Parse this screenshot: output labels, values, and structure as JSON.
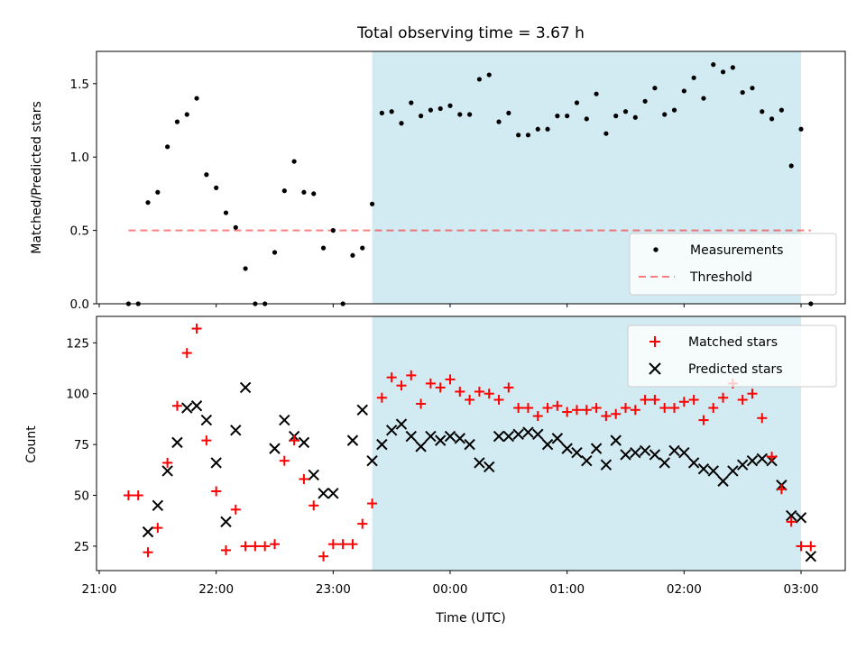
{
  "chart_data": [
    {
      "type": "scatter",
      "title": "Total observing time = 3.67 h",
      "xlabel": "",
      "ylabel": "Matched/Predicted stars",
      "ylim": [
        0,
        1.72
      ],
      "yticks": [
        "0.0",
        "0.5",
        "1.0",
        "1.5"
      ],
      "shaded_span": {
        "start": "23:20",
        "end": "03:00",
        "color": "#add8e6"
      },
      "legend": {
        "placement": "lower-right",
        "entries": [
          "Measurements",
          "Threshold"
        ]
      },
      "threshold": {
        "name": "Threshold",
        "value": 0.5,
        "x_start": "21:15",
        "x_end": "03:05",
        "color": "#ff0000"
      },
      "series": [
        {
          "name": "Measurements",
          "color": "#000000",
          "points": [
            [
              "21:15",
              0.0
            ],
            [
              "21:20",
              0.0
            ],
            [
              "21:25",
              0.69
            ],
            [
              "21:30",
              0.76
            ],
            [
              "21:35",
              1.07
            ],
            [
              "21:40",
              1.24
            ],
            [
              "21:45",
              1.29
            ],
            [
              "21:50",
              1.4
            ],
            [
              "21:55",
              0.88
            ],
            [
              "22:00",
              0.79
            ],
            [
              "22:05",
              0.62
            ],
            [
              "22:10",
              0.52
            ],
            [
              "22:15",
              0.24
            ],
            [
              "22:20",
              0.0
            ],
            [
              "22:25",
              0.0
            ],
            [
              "22:30",
              0.35
            ],
            [
              "22:35",
              0.77
            ],
            [
              "22:40",
              0.97
            ],
            [
              "22:45",
              0.76
            ],
            [
              "22:50",
              0.75
            ],
            [
              "22:55",
              0.38
            ],
            [
              "23:00",
              0.5
            ],
            [
              "23:05",
              0.0
            ],
            [
              "23:10",
              0.33
            ],
            [
              "23:15",
              0.38
            ],
            [
              "23:20",
              0.68
            ],
            [
              "23:25",
              1.3
            ],
            [
              "23:30",
              1.31
            ],
            [
              "23:35",
              1.23
            ],
            [
              "23:40",
              1.37
            ],
            [
              "23:45",
              1.28
            ],
            [
              "23:50",
              1.32
            ],
            [
              "23:55",
              1.33
            ],
            [
              "00:00",
              1.35
            ],
            [
              "00:05",
              1.29
            ],
            [
              "00:10",
              1.29
            ],
            [
              "00:15",
              1.53
            ],
            [
              "00:20",
              1.56
            ],
            [
              "00:25",
              1.24
            ],
            [
              "00:30",
              1.3
            ],
            [
              "00:35",
              1.15
            ],
            [
              "00:40",
              1.15
            ],
            [
              "00:45",
              1.19
            ],
            [
              "00:50",
              1.19
            ],
            [
              "00:55",
              1.28
            ],
            [
              "01:00",
              1.28
            ],
            [
              "01:05",
              1.37
            ],
            [
              "01:10",
              1.26
            ],
            [
              "01:15",
              1.43
            ],
            [
              "01:20",
              1.16
            ],
            [
              "01:25",
              1.28
            ],
            [
              "01:30",
              1.31
            ],
            [
              "01:35",
              1.27
            ],
            [
              "01:40",
              1.38
            ],
            [
              "01:45",
              1.47
            ],
            [
              "01:50",
              1.29
            ],
            [
              "01:55",
              1.32
            ],
            [
              "02:00",
              1.45
            ],
            [
              "02:05",
              1.54
            ],
            [
              "02:10",
              1.4
            ],
            [
              "02:15",
              1.63
            ],
            [
              "02:20",
              1.58
            ],
            [
              "02:25",
              1.61
            ],
            [
              "02:30",
              1.44
            ],
            [
              "02:35",
              1.47
            ],
            [
              "02:40",
              1.31
            ],
            [
              "02:45",
              1.26
            ],
            [
              "02:50",
              1.32
            ],
            [
              "02:55",
              0.94
            ],
            [
              "03:00",
              1.19
            ],
            [
              "03:05",
              0.0
            ]
          ]
        }
      ]
    },
    {
      "type": "scatter",
      "title": "",
      "xlabel": "Time (UTC)",
      "ylabel": "Count",
      "ylim": [
        13,
        138
      ],
      "yticks": [
        "25",
        "50",
        "75",
        "100",
        "125"
      ],
      "xticks": [
        "21:00",
        "22:00",
        "23:00",
        "00:00",
        "01:00",
        "02:00",
        "03:00"
      ],
      "shaded_span": {
        "start": "23:20",
        "end": "03:00",
        "color": "#add8e6"
      },
      "legend": {
        "placement": "upper-right",
        "entries": [
          "Matched stars",
          "Predicted stars"
        ]
      },
      "series": [
        {
          "name": "Matched stars",
          "marker": "plus",
          "color": "#ff0000",
          "points": [
            [
              "21:15",
              50
            ],
            [
              "21:20",
              50
            ],
            [
              "21:25",
              22
            ],
            [
              "21:30",
              34
            ],
            [
              "21:35",
              66
            ],
            [
              "21:40",
              94
            ],
            [
              "21:45",
              120
            ],
            [
              "21:50",
              132
            ],
            [
              "21:55",
              77
            ],
            [
              "22:00",
              52
            ],
            [
              "22:05",
              23
            ],
            [
              "22:10",
              43
            ],
            [
              "22:15",
              25
            ],
            [
              "22:20",
              25
            ],
            [
              "22:25",
              25
            ],
            [
              "22:30",
              26
            ],
            [
              "22:35",
              67
            ],
            [
              "22:40",
              77
            ],
            [
              "22:45",
              58
            ],
            [
              "22:50",
              45
            ],
            [
              "22:55",
              20
            ],
            [
              "23:00",
              26
            ],
            [
              "23:05",
              26
            ],
            [
              "23:10",
              26
            ],
            [
              "23:15",
              36
            ],
            [
              "23:20",
              46
            ],
            [
              "23:25",
              98
            ],
            [
              "23:30",
              108
            ],
            [
              "23:35",
              104
            ],
            [
              "23:40",
              109
            ],
            [
              "23:45",
              95
            ],
            [
              "23:50",
              105
            ],
            [
              "23:55",
              103
            ],
            [
              "00:00",
              107
            ],
            [
              "00:05",
              101
            ],
            [
              "00:10",
              97
            ],
            [
              "00:15",
              101
            ],
            [
              "00:20",
              100
            ],
            [
              "00:25",
              97
            ],
            [
              "00:30",
              103
            ],
            [
              "00:35",
              93
            ],
            [
              "00:40",
              93
            ],
            [
              "00:45",
              89
            ],
            [
              "00:50",
              93
            ],
            [
              "00:55",
              94
            ],
            [
              "01:00",
              91
            ],
            [
              "01:05",
              92
            ],
            [
              "01:10",
              92
            ],
            [
              "01:15",
              93
            ],
            [
              "01:20",
              89
            ],
            [
              "01:25",
              90
            ],
            [
              "01:30",
              93
            ],
            [
              "01:35",
              92
            ],
            [
              "01:40",
              97
            ],
            [
              "01:45",
              97
            ],
            [
              "01:50",
              93
            ],
            [
              "01:55",
              93
            ],
            [
              "02:00",
              96
            ],
            [
              "02:05",
              97
            ],
            [
              "02:10",
              87
            ],
            [
              "02:15",
              93
            ],
            [
              "02:20",
              98
            ],
            [
              "02:25",
              105
            ],
            [
              "02:30",
              97
            ],
            [
              "02:35",
              100
            ],
            [
              "02:40",
              88
            ],
            [
              "02:45",
              69
            ],
            [
              "02:50",
              53
            ],
            [
              "02:55",
              37
            ],
            [
              "03:00",
              25
            ],
            [
              "03:05",
              25
            ]
          ]
        },
        {
          "name": "Predicted stars",
          "marker": "x",
          "color": "#000000",
          "points": [
            [
              "21:25",
              32
            ],
            [
              "21:30",
              45
            ],
            [
              "21:35",
              62
            ],
            [
              "21:40",
              76
            ],
            [
              "21:45",
              93
            ],
            [
              "21:50",
              94
            ],
            [
              "21:55",
              87
            ],
            [
              "22:00",
              66
            ],
            [
              "22:05",
              37
            ],
            [
              "22:10",
              82
            ],
            [
              "22:15",
              103
            ],
            [
              "22:30",
              73
            ],
            [
              "22:35",
              87
            ],
            [
              "22:40",
              79
            ],
            [
              "22:45",
              76
            ],
            [
              "22:50",
              60
            ],
            [
              "22:55",
              51
            ],
            [
              "23:00",
              51
            ],
            [
              "23:10",
              77
            ],
            [
              "23:15",
              92
            ],
            [
              "23:20",
              67
            ],
            [
              "23:25",
              75
            ],
            [
              "23:30",
              82
            ],
            [
              "23:35",
              85
            ],
            [
              "23:40",
              79
            ],
            [
              "23:45",
              74
            ],
            [
              "23:50",
              79
            ],
            [
              "23:55",
              77
            ],
            [
              "00:00",
              79
            ],
            [
              "00:05",
              78
            ],
            [
              "00:10",
              75
            ],
            [
              "00:15",
              66
            ],
            [
              "00:20",
              64
            ],
            [
              "00:25",
              79
            ],
            [
              "00:30",
              79
            ],
            [
              "00:35",
              80
            ],
            [
              "00:40",
              81
            ],
            [
              "00:45",
              80
            ],
            [
              "00:50",
              75
            ],
            [
              "00:55",
              78
            ],
            [
              "01:00",
              73
            ],
            [
              "01:05",
              71
            ],
            [
              "01:10",
              67
            ],
            [
              "01:15",
              73
            ],
            [
              "01:20",
              65
            ],
            [
              "01:25",
              77
            ],
            [
              "01:30",
              70
            ],
            [
              "01:35",
              71
            ],
            [
              "01:40",
              72
            ],
            [
              "01:45",
              70
            ],
            [
              "01:50",
              66
            ],
            [
              "01:55",
              72
            ],
            [
              "02:00",
              71
            ],
            [
              "02:05",
              66
            ],
            [
              "02:10",
              63
            ],
            [
              "02:15",
              62
            ],
            [
              "02:20",
              57
            ],
            [
              "02:25",
              62
            ],
            [
              "02:30",
              65
            ],
            [
              "02:35",
              67
            ],
            [
              "02:40",
              68
            ],
            [
              "02:45",
              67
            ],
            [
              "02:50",
              55
            ],
            [
              "02:55",
              40
            ],
            [
              "03:00",
              39
            ],
            [
              "03:05",
              20
            ]
          ]
        }
      ]
    }
  ]
}
